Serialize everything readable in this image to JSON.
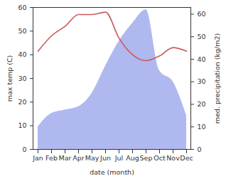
{
  "chart_data": {
    "type": "line",
    "x_label": "date (month)",
    "y_label": "max temp (C)",
    "y2_label": "med. precipitation (kg/m2)",
    "categories": [
      "Jan",
      "Feb",
      "Mar",
      "Apr",
      "May",
      "Jun",
      "Jul",
      "Aug",
      "Sep",
      "Oct",
      "Nov",
      "Dec"
    ],
    "series": [
      {
        "type": "area",
        "axis": "y2",
        "color": "#b0b8f0",
        "values": [
          10,
          16,
          17.5,
          19,
          25,
          37,
          48,
          56,
          62,
          35,
          30,
          15
        ]
      },
      {
        "type": "line",
        "axis": "y",
        "color": "#c85a5a",
        "values": [
          41.5,
          48,
          52,
          57,
          57,
          58,
          47,
          40,
          37.5,
          39.5,
          43,
          41.5
        ]
      }
    ],
    "ylim": [
      0,
      60
    ],
    "yticks": [
      0,
      10,
      20,
      30,
      40,
      50,
      60
    ],
    "y2lim": [
      0,
      63
    ],
    "y2ticks": [
      0,
      10,
      20,
      30,
      40,
      50,
      60
    ],
    "grid": false
  }
}
